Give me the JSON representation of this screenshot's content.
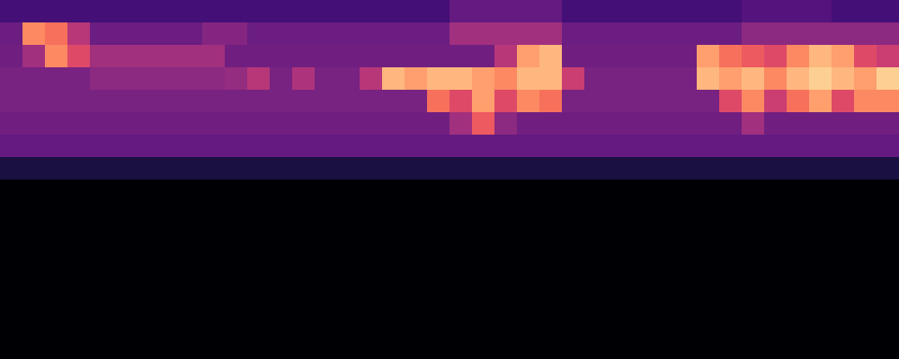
{
  "chart_data": {
    "type": "heatmap",
    "color": "magma",
    "zlim": [
      0,
      1
    ],
    "tick_labels": false,
    "values": [
      [
        0.22,
        0.22,
        0.22,
        0.22,
        0.22,
        0.22,
        0.22,
        0.22,
        0.22,
        0.22,
        0.22,
        0.22,
        0.22,
        0.22,
        0.22,
        0.22,
        0.22,
        0.22,
        0.22,
        0.22,
        0.3,
        0.3,
        0.3,
        0.3,
        0.3,
        0.22,
        0.22,
        0.22,
        0.22,
        0.22,
        0.22,
        0.22,
        0.22,
        0.26,
        0.26,
        0.26,
        0.26,
        0.22,
        0.22,
        0.22
      ],
      [
        0.32,
        0.75,
        0.7,
        0.5,
        0.32,
        0.32,
        0.32,
        0.32,
        0.32,
        0.38,
        0.38,
        0.32,
        0.32,
        0.32,
        0.32,
        0.32,
        0.32,
        0.32,
        0.32,
        0.32,
        0.45,
        0.45,
        0.45,
        0.45,
        0.45,
        0.32,
        0.32,
        0.32,
        0.32,
        0.32,
        0.32,
        0.32,
        0.32,
        0.4,
        0.4,
        0.4,
        0.4,
        0.4,
        0.4,
        0.4
      ],
      [
        0.33,
        0.45,
        0.75,
        0.6,
        0.45,
        0.45,
        0.45,
        0.45,
        0.45,
        0.45,
        0.33,
        0.33,
        0.33,
        0.33,
        0.33,
        0.33,
        0.33,
        0.33,
        0.33,
        0.33,
        0.33,
        0.33,
        0.5,
        0.8,
        0.85,
        0.33,
        0.33,
        0.33,
        0.33,
        0.33,
        0.33,
        0.8,
        0.7,
        0.65,
        0.6,
        0.75,
        0.85,
        0.8,
        0.6,
        0.55
      ],
      [
        0.35,
        0.35,
        0.35,
        0.35,
        0.4,
        0.4,
        0.4,
        0.4,
        0.4,
        0.4,
        0.42,
        0.5,
        0.35,
        0.48,
        0.35,
        0.35,
        0.5,
        0.85,
        0.8,
        0.85,
        0.85,
        0.8,
        0.75,
        0.85,
        0.85,
        0.55,
        0.35,
        0.35,
        0.35,
        0.35,
        0.35,
        0.85,
        0.8,
        0.85,
        0.75,
        0.85,
        0.9,
        0.85,
        0.8,
        0.9
      ],
      [
        0.35,
        0.35,
        0.35,
        0.35,
        0.35,
        0.35,
        0.35,
        0.35,
        0.35,
        0.35,
        0.35,
        0.35,
        0.35,
        0.35,
        0.35,
        0.35,
        0.35,
        0.35,
        0.35,
        0.7,
        0.6,
        0.8,
        0.6,
        0.75,
        0.7,
        0.35,
        0.35,
        0.35,
        0.35,
        0.35,
        0.35,
        0.35,
        0.6,
        0.75,
        0.55,
        0.7,
        0.8,
        0.6,
        0.75,
        0.75
      ],
      [
        0.33,
        0.33,
        0.33,
        0.33,
        0.33,
        0.33,
        0.33,
        0.33,
        0.33,
        0.33,
        0.33,
        0.33,
        0.33,
        0.33,
        0.33,
        0.33,
        0.33,
        0.33,
        0.33,
        0.33,
        0.45,
        0.65,
        0.4,
        0.33,
        0.33,
        0.33,
        0.33,
        0.33,
        0.33,
        0.33,
        0.33,
        0.33,
        0.33,
        0.45,
        0.33,
        0.33,
        0.33,
        0.33,
        0.33,
        0.33
      ],
      [
        0.3,
        0.3,
        0.3,
        0.3,
        0.3,
        0.3,
        0.3,
        0.3,
        0.3,
        0.3,
        0.3,
        0.3,
        0.3,
        0.3,
        0.3,
        0.3,
        0.3,
        0.3,
        0.3,
        0.3,
        0.3,
        0.3,
        0.3,
        0.3,
        0.3,
        0.3,
        0.3,
        0.3,
        0.3,
        0.3,
        0.3,
        0.3,
        0.3,
        0.3,
        0.3,
        0.3,
        0.3,
        0.3,
        0.3,
        0.3
      ],
      [
        0.12,
        0.12,
        0.12,
        0.12,
        0.12,
        0.12,
        0.12,
        0.12,
        0.12,
        0.12,
        0.12,
        0.12,
        0.12,
        0.12,
        0.12,
        0.12,
        0.12,
        0.12,
        0.12,
        0.12,
        0.12,
        0.12,
        0.12,
        0.12,
        0.12,
        0.12,
        0.12,
        0.12,
        0.12,
        0.12,
        0.12,
        0.12,
        0.12,
        0.12,
        0.12,
        0.12,
        0.12,
        0.12,
        0.12,
        0.12
      ],
      [
        0,
        0,
        0,
        0,
        0,
        0,
        0,
        0,
        0,
        0,
        0,
        0,
        0,
        0,
        0,
        0,
        0,
        0,
        0,
        0,
        0,
        0,
        0,
        0,
        0,
        0,
        0,
        0,
        0,
        0,
        0,
        0,
        0,
        0,
        0,
        0,
        0,
        0,
        0,
        0
      ],
      [
        0,
        0,
        0,
        0,
        0,
        0,
        0,
        0,
        0,
        0,
        0,
        0,
        0,
        0,
        0,
        0,
        0,
        0,
        0,
        0,
        0,
        0,
        0,
        0,
        0,
        0,
        0,
        0,
        0,
        0,
        0,
        0,
        0,
        0,
        0,
        0,
        0,
        0,
        0,
        0
      ],
      [
        0,
        0,
        0,
        0,
        0,
        0,
        0,
        0,
        0,
        0,
        0,
        0,
        0,
        0,
        0,
        0,
        0,
        0,
        0,
        0,
        0,
        0,
        0,
        0,
        0,
        0,
        0,
        0,
        0,
        0,
        0,
        0,
        0,
        0,
        0,
        0,
        0,
        0,
        0,
        0
      ],
      [
        0,
        0,
        0,
        0,
        0,
        0,
        0,
        0,
        0,
        0,
        0,
        0,
        0,
        0,
        0,
        0,
        0,
        0,
        0,
        0,
        0,
        0,
        0,
        0,
        0,
        0,
        0,
        0,
        0,
        0,
        0,
        0,
        0,
        0,
        0,
        0,
        0,
        0,
        0,
        0
      ],
      [
        0,
        0,
        0,
        0,
        0,
        0,
        0,
        0,
        0,
        0,
        0,
        0,
        0,
        0,
        0,
        0,
        0,
        0,
        0,
        0,
        0,
        0,
        0,
        0,
        0,
        0,
        0,
        0,
        0,
        0,
        0,
        0,
        0,
        0,
        0,
        0,
        0,
        0,
        0,
        0
      ],
      [
        0,
        0,
        0,
        0,
        0,
        0,
        0,
        0,
        0,
        0,
        0,
        0,
        0,
        0,
        0,
        0,
        0,
        0,
        0,
        0,
        0,
        0,
        0,
        0,
        0,
        0,
        0,
        0,
        0,
        0,
        0,
        0,
        0,
        0,
        0,
        0,
        0,
        0,
        0,
        0
      ],
      [
        0,
        0,
        0,
        0,
        0,
        0,
        0,
        0,
        0,
        0,
        0,
        0,
        0,
        0,
        0,
        0,
        0,
        0,
        0,
        0,
        0,
        0,
        0,
        0,
        0,
        0,
        0,
        0,
        0,
        0,
        0,
        0,
        0,
        0,
        0,
        0,
        0,
        0,
        0,
        0
      ],
      [
        0,
        0,
        0,
        0,
        0,
        0,
        0,
        0,
        0,
        0,
        0,
        0,
        0,
        0,
        0,
        0,
        0,
        0,
        0,
        0,
        0,
        0,
        0,
        0,
        0,
        0,
        0,
        0,
        0,
        0,
        0,
        0,
        0,
        0,
        0,
        0,
        0,
        0,
        0,
        0
      ]
    ]
  }
}
